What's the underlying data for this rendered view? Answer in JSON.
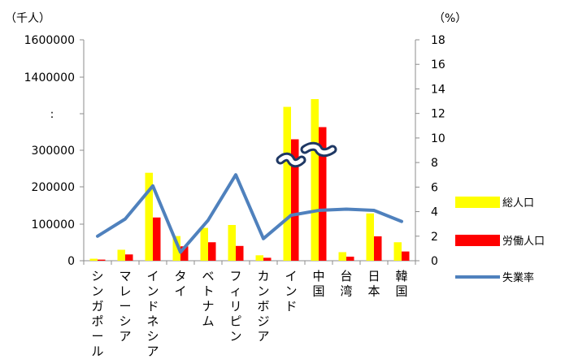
{
  "chart_data": {
    "type": "bar",
    "categories": [
      "シンガポール",
      "マレーシア",
      "インドネシア",
      "タイ",
      "ベトナム",
      "フィリピン",
      "カンボジア",
      "インド",
      "中国",
      "台湾",
      "日本",
      "韓国"
    ],
    "series": [
      {
        "name": "総人口",
        "type": "bar",
        "axis": "left",
        "values": [
          5400,
          29700,
          238000,
          66700,
          88800,
          96700,
          14700,
          1210000,
          1340000,
          23200,
          128000,
          50000
        ]
      },
      {
        "name": "労働人口",
        "type": "bar",
        "axis": "left",
        "values": [
          3000,
          17000,
          117000,
          39000,
          50000,
          40000,
          8000,
          490000,
          790000,
          11000,
          66000,
          25000
        ]
      },
      {
        "name": "失業率",
        "type": "line",
        "axis": "right",
        "values": [
          2.0,
          3.4,
          6.1,
          0.7,
          3.3,
          7.0,
          1.8,
          3.7,
          4.1,
          4.2,
          4.1,
          3.2
        ]
      }
    ],
    "left_axis": {
      "unit": "（千人）",
      "ticks": [
        "0",
        "100000",
        "200000",
        "300000",
        "1400000",
        "1600000"
      ],
      "break_label": ":",
      "ylim": [
        0,
        1600000
      ]
    },
    "right_axis": {
      "unit": "（%）",
      "ticks": [
        "0",
        "2",
        "4",
        "6",
        "8",
        "10",
        "12",
        "14",
        "16",
        "18"
      ],
      "ylim": [
        0,
        18
      ]
    },
    "legend": {
      "position": "right",
      "items": [
        "総人口",
        "労働人口",
        "失業率"
      ]
    },
    "colors": {
      "total": "#FFFF00",
      "labor": "#FF0000",
      "unemployment": "#4F81BD",
      "break": "#1F3864"
    },
    "grid": false
  }
}
